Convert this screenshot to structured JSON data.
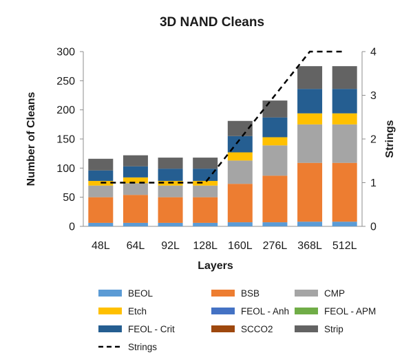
{
  "chart_data": {
    "type": "bar",
    "stacked": true,
    "title": "3D NAND Cleans",
    "xlabel": "Layers",
    "ylabel": "Number of Cleans",
    "y2label": "Strings",
    "categories": [
      "48L",
      "64L",
      "92L",
      "128L",
      "160L",
      "276L",
      "368L",
      "512L"
    ],
    "ylim": [
      0,
      300
    ],
    "yticks": [
      "0",
      "50",
      "100",
      "150",
      "200",
      "250",
      "300"
    ],
    "y2lim": [
      0,
      4
    ],
    "y2ticks": [
      "0",
      "1",
      "2",
      "3",
      "4"
    ],
    "series": [
      {
        "name": "BEOL",
        "color": "#5b9bd5",
        "values": [
          6,
          6,
          6,
          6,
          7,
          7,
          8,
          8
        ]
      },
      {
        "name": "BSB",
        "color": "#ed7d31",
        "values": [
          44,
          48,
          44,
          44,
          66,
          80,
          101,
          101
        ]
      },
      {
        "name": "CMP",
        "color": "#a5a5a5",
        "values": [
          20,
          20,
          20,
          20,
          40,
          52,
          66,
          66
        ]
      },
      {
        "name": "Etch",
        "color": "#ffc000",
        "values": [
          8,
          10,
          8,
          8,
          14,
          14,
          19,
          19
        ]
      },
      {
        "name": "FEOL - Anh",
        "color": "#4472c4",
        "values": [
          0,
          0,
          0,
          0,
          0,
          0,
          0,
          0
        ]
      },
      {
        "name": "FEOL - APM",
        "color": "#70ad47",
        "values": [
          0,
          0,
          0,
          0,
          0,
          0,
          0,
          0
        ]
      },
      {
        "name": "FEOL - Crit",
        "color": "#255e91",
        "values": [
          18,
          19,
          21,
          21,
          28,
          34,
          42,
          42
        ]
      },
      {
        "name": "SCCO2",
        "color": "#9e480e",
        "values": [
          0,
          0,
          0,
          0,
          0,
          0,
          0,
          0
        ]
      },
      {
        "name": "Strip",
        "color": "#636363",
        "values": [
          20,
          19,
          19,
          19,
          26,
          29,
          39,
          39
        ]
      }
    ],
    "line_series": {
      "name": "Strings",
      "axis": "secondary",
      "style": "dashed",
      "color": "#000000",
      "values": [
        1,
        1,
        1,
        1,
        2,
        3,
        4,
        4
      ]
    },
    "legend": "bottom"
  }
}
